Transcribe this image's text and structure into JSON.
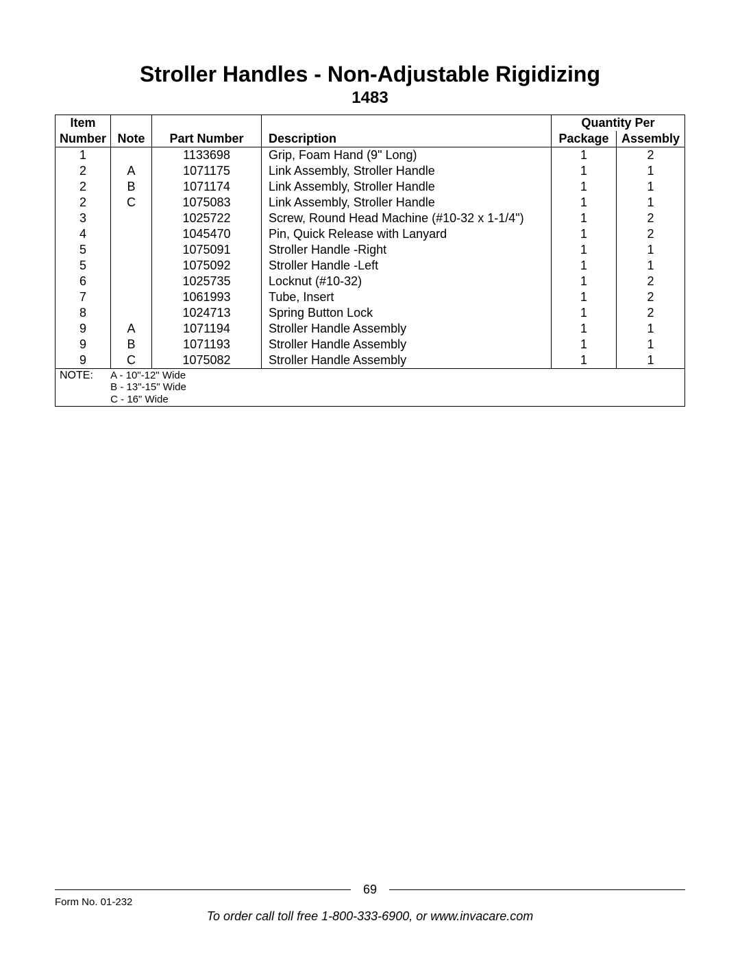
{
  "title": "Stroller Handles - Non-Adjustable Rigidizing",
  "subtitle": "1483",
  "headers": {
    "item_top": "Item",
    "item": "Number",
    "note": "Note",
    "part": "Part Number",
    "desc": "Description",
    "qty_group": "Quantity Per",
    "pkg": "Package",
    "asm": "Assembly"
  },
  "rows": [
    {
      "item": "1",
      "note": "",
      "part": "1133698",
      "desc": "Grip, Foam Hand (9\" Long)",
      "pkg": "1",
      "asm": "2"
    },
    {
      "item": "2",
      "note": "A",
      "part": "1071175",
      "desc": "Link Assembly, Stroller Handle",
      "pkg": "1",
      "asm": "1"
    },
    {
      "item": "2",
      "note": "B",
      "part": "1071174",
      "desc": "Link Assembly, Stroller Handle",
      "pkg": "1",
      "asm": "1"
    },
    {
      "item": "2",
      "note": "C",
      "part": "1075083",
      "desc": "Link Assembly, Stroller Handle",
      "pkg": "1",
      "asm": "1"
    },
    {
      "item": "3",
      "note": "",
      "part": "1025722",
      "desc": "Screw, Round Head Machine (#10-32 x 1-1/4\")",
      "pkg": "1",
      "asm": "2"
    },
    {
      "item": "4",
      "note": "",
      "part": "1045470",
      "desc": "Pin, Quick Release with Lanyard",
      "pkg": "1",
      "asm": "2"
    },
    {
      "item": "5",
      "note": "",
      "part": "1075091",
      "desc": "Stroller Handle -Right",
      "pkg": "1",
      "asm": "1"
    },
    {
      "item": "5",
      "note": "",
      "part": "1075092",
      "desc": "Stroller Handle -Left",
      "pkg": "1",
      "asm": "1"
    },
    {
      "item": "6",
      "note": "",
      "part": "1025735",
      "desc": "Locknut (#10-32)",
      "pkg": "1",
      "asm": "2"
    },
    {
      "item": "7",
      "note": "",
      "part": "1061993",
      "desc": "Tube, Insert",
      "pkg": "1",
      "asm": "2"
    },
    {
      "item": "8",
      "note": "",
      "part": "1024713",
      "desc": "Spring Button Lock",
      "pkg": "1",
      "asm": "2"
    },
    {
      "item": "9",
      "note": "A",
      "part": "1071194",
      "desc": "Stroller Handle Assembly",
      "pkg": "1",
      "asm": "1"
    },
    {
      "item": "9",
      "note": "B",
      "part": "1071193",
      "desc": "Stroller Handle Assembly",
      "pkg": "1",
      "asm": "1"
    },
    {
      "item": "9",
      "note": "C",
      "part": "1075082",
      "desc": "Stroller Handle Assembly",
      "pkg": "1",
      "asm": "1"
    }
  ],
  "note_block": {
    "label": "NOTE:",
    "lines": [
      "A - 10\"-12\" Wide",
      "B - 13\"-15\" Wide",
      "C - 16\"  Wide"
    ]
  },
  "footer": {
    "page_number": "69",
    "form_no": "Form No. 01-232",
    "order_line": "To order call toll free 1-800-333-6900, or www.invacare.com"
  }
}
